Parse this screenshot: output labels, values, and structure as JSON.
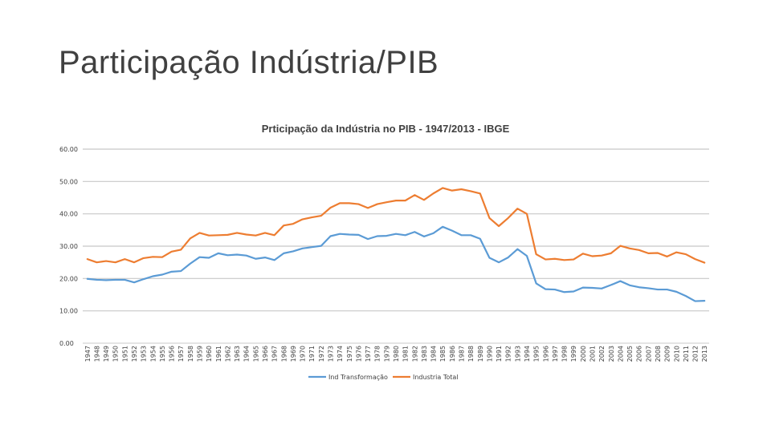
{
  "slide": {
    "title": "Participação Indústria/PIB"
  },
  "chart_data": {
    "type": "line",
    "title": "Prticipação da Indústria no PIB - 1947/2013 - IBGE",
    "xlabel": "",
    "ylabel": "",
    "ylim": [
      0,
      60
    ],
    "yticks": [
      "0.00",
      "10.00",
      "20.00",
      "30.00",
      "40.00",
      "50.00",
      "60.00"
    ],
    "grid": true,
    "legend": "bottom",
    "x": [
      "1947",
      "1948",
      "1949",
      "1950",
      "1951",
      "1952",
      "1953",
      "1954",
      "1955",
      "1956",
      "1957",
      "1958",
      "1959",
      "1960",
      "1961",
      "1962",
      "1963",
      "1964",
      "1965",
      "1966",
      "1967",
      "1968",
      "1969",
      "1970",
      "1971",
      "1972",
      "1973",
      "1974",
      "1975",
      "1976",
      "1977",
      "1978",
      "1979",
      "1980",
      "1981",
      "1982",
      "1983",
      "1984",
      "1985",
      "1986",
      "1987",
      "1988",
      "1989",
      "1990",
      "1991",
      "1992",
      "1993",
      "1994",
      "1995",
      "1996",
      "1997",
      "1998",
      "1999",
      "2000",
      "2001",
      "2002",
      "2003",
      "2004",
      "2005",
      "2006",
      "2007",
      "2008",
      "2009",
      "2010",
      "2011",
      "2012",
      "2013"
    ],
    "series": [
      {
        "name": "Ind Transformação",
        "color": "#5b9bd5",
        "values": [
          19.9,
          19.6,
          19.5,
          19.6,
          19.6,
          18.8,
          19.8,
          20.7,
          21.2,
          22.1,
          22.3,
          24.6,
          26.6,
          26.4,
          27.8,
          27.2,
          27.4,
          27.1,
          26.1,
          26.5,
          25.7,
          27.8,
          28.4,
          29.3,
          29.7,
          30.1,
          33.1,
          33.8,
          33.6,
          33.5,
          32.2,
          33.1,
          33.2,
          33.8,
          33.4,
          34.4,
          33.0,
          34.0,
          36.0,
          34.8,
          33.4,
          33.4,
          32.3,
          26.4,
          25.0,
          26.5,
          29.1,
          27.0,
          18.5,
          16.7,
          16.6,
          15.8,
          16.0,
          17.2,
          17.1,
          16.9,
          18.0,
          19.2,
          17.9,
          17.3,
          17.0,
          16.6,
          16.6,
          15.9,
          14.6,
          13.0,
          13.1
        ]
      },
      {
        "name": "Industria Total",
        "color": "#ed7d31",
        "values": [
          26.0,
          25.0,
          25.4,
          25.0,
          26.0,
          25.0,
          26.3,
          26.7,
          26.6,
          28.3,
          28.9,
          32.4,
          34.1,
          33.3,
          33.4,
          33.5,
          34.1,
          33.6,
          33.3,
          34.1,
          33.4,
          36.4,
          36.9,
          38.3,
          38.9,
          39.4,
          41.9,
          43.3,
          43.3,
          43.0,
          41.8,
          43.0,
          43.6,
          44.1,
          44.1,
          45.8,
          44.3,
          46.3,
          48.0,
          47.2,
          47.6,
          47.0,
          46.3,
          38.7,
          36.2,
          38.7,
          41.6,
          40.0,
          27.5,
          25.9,
          26.1,
          25.7,
          25.9,
          27.7,
          26.9,
          27.1,
          27.8,
          30.1,
          29.3,
          28.8,
          27.8,
          27.9,
          26.8,
          28.1,
          27.5,
          26.0,
          24.9
        ]
      }
    ]
  }
}
